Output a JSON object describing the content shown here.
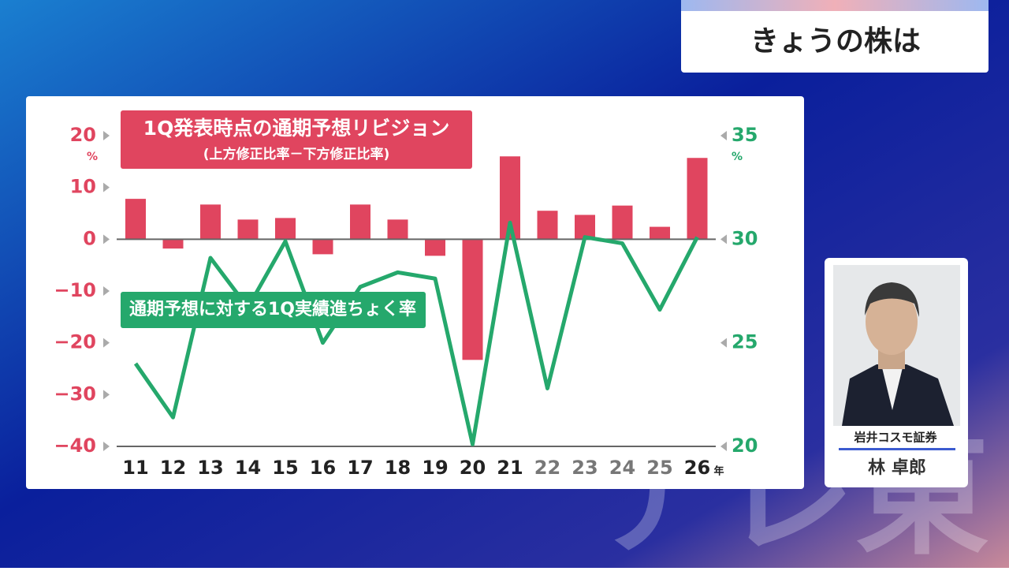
{
  "header": {
    "title": "きょうの株は"
  },
  "chart_data": {
    "type": "bar-line",
    "categories": [
      "11",
      "12",
      "13",
      "14",
      "15",
      "16",
      "17",
      "18",
      "19",
      "20",
      "21",
      "22",
      "23",
      "24",
      "25",
      "26"
    ],
    "x_unit": "年",
    "series": [
      {
        "name": "1Q発表時点の通期予想リビジョン",
        "note": "(上方修正比率－下方修正比率)",
        "type": "bar",
        "color": "#e0455f",
        "values": [
          7.8,
          -1.8,
          6.7,
          3.8,
          4.1,
          -2.9,
          6.7,
          3.8,
          -3.2,
          -23.3,
          16.0,
          5.5,
          4.7,
          6.5,
          2.4,
          15.7
        ]
      },
      {
        "name": "通期予想に対する1Q実績進ちょく率",
        "type": "line",
        "axis": "y2",
        "color": "#25a86c",
        "values": [
          24.0,
          21.4,
          29.1,
          26.7,
          29.9,
          25.0,
          27.7,
          28.4,
          28.1,
          20.1,
          30.8,
          22.8,
          30.1,
          29.8,
          26.6,
          30.1
        ]
      }
    ],
    "ylim": [
      -40,
      20
    ],
    "yticks": [
      {
        "value": -40,
        "label": "−40"
      },
      {
        "value": -30,
        "label": "−30"
      },
      {
        "value": -20,
        "label": "−20"
      },
      {
        "value": -10,
        "label": "−10"
      },
      0,
      10,
      20
    ],
    "y_unit": "%",
    "y2lim": [
      20,
      35
    ],
    "y2ticks": [
      20,
      25,
      30,
      35
    ],
    "y2_unit": "%"
  },
  "speaker": {
    "company": "岩井コスモ証券",
    "name": "林 卓郎"
  },
  "watermark": "テレ東"
}
